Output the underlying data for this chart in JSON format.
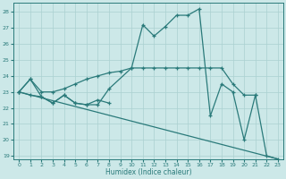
{
  "xlabel": "Humidex (Indice chaleur)",
  "bg_color": "#cce8e8",
  "line_color": "#2a7a7a",
  "grid_color": "#aad0d0",
  "xlim": [
    -0.5,
    23.5
  ],
  "ylim": [
    18.8,
    28.6
  ],
  "yticks": [
    19,
    20,
    21,
    22,
    23,
    24,
    25,
    26,
    27,
    28
  ],
  "xticks": [
    0,
    1,
    2,
    3,
    4,
    5,
    6,
    7,
    8,
    9,
    10,
    11,
    12,
    13,
    14,
    15,
    16,
    17,
    18,
    19,
    20,
    21,
    22,
    23
  ],
  "series": {
    "main_curve": {
      "x": [
        0,
        1,
        2,
        3,
        4,
        5,
        6,
        7,
        8,
        10,
        11,
        12,
        13,
        14,
        15,
        16,
        17,
        18,
        19,
        20,
        21,
        22,
        23
      ],
      "y": [
        23.0,
        23.8,
        22.7,
        22.3,
        22.8,
        22.3,
        22.2,
        22.2,
        23.2,
        24.5,
        27.2,
        26.5,
        27.1,
        27.8,
        27.8,
        28.2,
        21.5,
        23.5,
        23.0,
        20.0,
        22.8,
        19.0,
        18.8
      ]
    },
    "upper_line": {
      "x": [
        0,
        1,
        2,
        3,
        4,
        5,
        6,
        7,
        8,
        9,
        10,
        11,
        12,
        13,
        14,
        15,
        16,
        17,
        18,
        19,
        20,
        21
      ],
      "y": [
        23.0,
        23.8,
        23.0,
        23.0,
        23.2,
        23.5,
        23.8,
        24.0,
        24.2,
        24.3,
        24.5,
        24.5,
        24.5,
        24.5,
        24.5,
        24.5,
        24.5,
        24.5,
        24.5,
        23.5,
        22.8,
        22.8
      ]
    },
    "lower_cluster": {
      "x": [
        0,
        1,
        2,
        3,
        4,
        5,
        6,
        7,
        8
      ],
      "y": [
        23.0,
        22.8,
        22.7,
        22.3,
        22.8,
        22.3,
        22.2,
        22.5,
        22.3
      ]
    },
    "diagonal": {
      "x": [
        0,
        23
      ],
      "y": [
        23.0,
        18.8
      ]
    }
  }
}
